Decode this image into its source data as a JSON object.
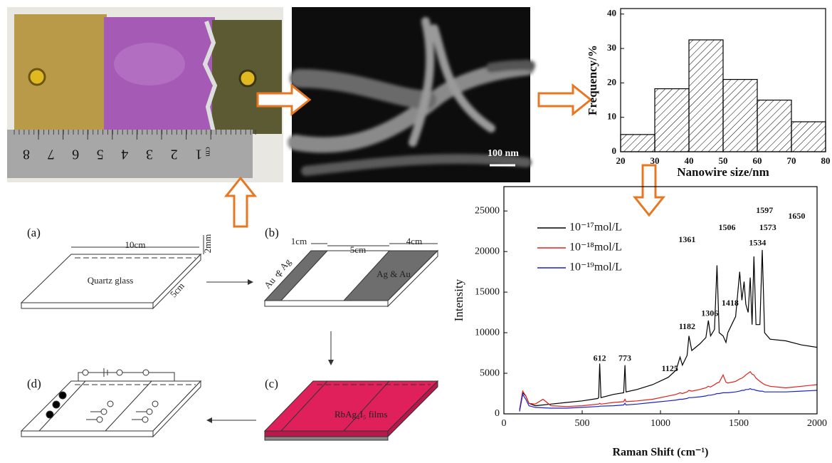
{
  "photo": {
    "ruler_labels": [
      "8",
      "7",
      "6",
      "5",
      "4",
      "3",
      "2",
      "1"
    ],
    "ruler_unit": "cm"
  },
  "sem": {
    "scale_bar": "100 nm"
  },
  "schematic": {
    "a": {
      "label": "(a)",
      "length": "10cm",
      "thickness": "2mm",
      "material": "Quartz glass",
      "width": "5cm"
    },
    "b": {
      "label": "(b)",
      "left": "1cm",
      "middle": "5cm",
      "right": "4cm",
      "left_top": "Ag",
      "left_mid": "&",
      "left_bottom": "Au",
      "right_coating": "Ag & Au"
    },
    "c": {
      "label": "(c)",
      "film": "RbAg₄I₅ films"
    },
    "d": {
      "label": "(d)"
    }
  },
  "chart_data": [
    {
      "type": "histogram",
      "xlabel": "Nanowire size/nm",
      "ylabel": "Frequency/%",
      "bins": [
        20,
        30,
        40,
        50,
        60,
        70,
        80
      ],
      "values": [
        5,
        18.3,
        32.5,
        21,
        15,
        8.7
      ],
      "color": "#000000",
      "xlim": [
        20,
        80
      ],
      "xticks": [
        20,
        30,
        40,
        50,
        60,
        70,
        80
      ],
      "ylim": [
        0,
        41.6
      ],
      "yticks": [
        0,
        10,
        20,
        30,
        40
      ]
    },
    {
      "type": "line",
      "xlabel": "Raman Shift (cm⁻¹)",
      "ylabel": "Intensity",
      "legend": "upper left",
      "xlim": [
        0,
        2000
      ],
      "xticks": [
        0,
        500,
        1000,
        1500,
        2000
      ],
      "ylim": [
        0,
        28000
      ],
      "yticks": [
        0,
        5000,
        10000,
        15000,
        20000,
        25000
      ],
      "x": [
        100,
        120,
        140,
        160,
        200,
        250,
        300,
        400,
        500,
        600,
        605,
        612,
        620,
        700,
        765,
        773,
        780,
        850,
        950,
        1050,
        1100,
        1125,
        1140,
        1170,
        1182,
        1200,
        1250,
        1290,
        1306,
        1320,
        1345,
        1361,
        1375,
        1400,
        1418,
        1430,
        1480,
        1506,
        1520,
        1534,
        1545,
        1560,
        1573,
        1585,
        1597,
        1610,
        1635,
        1650,
        1665,
        1700,
        1800,
        1900,
        2000
      ],
      "series": [
        {
          "name": "10⁻¹⁷mol/L",
          "color": "#000000",
          "values": [
            500,
            2600,
            2200,
            1300,
            1000,
            1100,
            1200,
            1400,
            1600,
            1900,
            2000,
            6200,
            2000,
            2400,
            2600,
            6000,
            2700,
            3000,
            3600,
            4500,
            5400,
            7000,
            6000,
            7200,
            9600,
            7800,
            8600,
            9400,
            11500,
            9600,
            10400,
            18300,
            10000,
            9600,
            8800,
            10000,
            12000,
            17500,
            14000,
            16300,
            13500,
            12500,
            16800,
            11000,
            19400,
            11000,
            11000,
            20200,
            10000,
            9200,
            9000,
            8500,
            8200
          ]
        },
        {
          "name": "10⁻¹⁸mol/L",
          "color": "#e0201b",
          "values": [
            500,
            2800,
            2200,
            1300,
            1200,
            1800,
            1000,
            900,
            1000,
            1200,
            1200,
            1300,
            1200,
            1400,
            1500,
            1800,
            1500,
            1600,
            1800,
            2200,
            2400,
            2600,
            2500,
            2700,
            2900,
            2800,
            3000,
            3200,
            3400,
            3300,
            3600,
            3800,
            3900,
            4800,
            3900,
            3800,
            4000,
            4300,
            4400,
            4600,
            4800,
            5000,
            5200,
            4900,
            4800,
            4400,
            4000,
            3800,
            3600,
            3400,
            3200,
            3400,
            3600
          ]
        },
        {
          "name": "10⁻¹⁹mol/L",
          "color": "#1a22c8",
          "values": [
            300,
            2400,
            1800,
            1000,
            800,
            750,
            700,
            700,
            800,
            900,
            900,
            950,
            950,
            1000,
            1100,
            1300,
            1100,
            1200,
            1400,
            1600,
            1700,
            1800,
            1800,
            1900,
            2000,
            2000,
            2100,
            2200,
            2300,
            2300,
            2400,
            2500,
            2500,
            2600,
            2600,
            2600,
            2700,
            2800,
            2900,
            2900,
            3000,
            3000,
            3100,
            3000,
            3000,
            2900,
            2800,
            2800,
            2700,
            2700,
            2700,
            2800,
            2900
          ]
        }
      ],
      "annotations": [
        {
          "text": "612",
          "x": 612,
          "y": 6800
        },
        {
          "text": "773",
          "x": 773,
          "y": 6800
        },
        {
          "text": "1125",
          "x": 1060,
          "y": 5500
        },
        {
          "text": "1182",
          "x": 1170,
          "y": 10700
        },
        {
          "text": "1306",
          "x": 1315,
          "y": 12300
        },
        {
          "text": "1418",
          "x": 1445,
          "y": 13600
        },
        {
          "text": "1361",
          "x": 1170,
          "y": 21400
        },
        {
          "text": "1506",
          "x": 1425,
          "y": 22900
        },
        {
          "text": "1534",
          "x": 1620,
          "y": 21000
        },
        {
          "text": "1573",
          "x": 1685,
          "y": 22900
        },
        {
          "text": "1597",
          "x": 1665,
          "y": 25000
        },
        {
          "text": "1650",
          "x": 1870,
          "y": 24300
        }
      ]
    }
  ]
}
